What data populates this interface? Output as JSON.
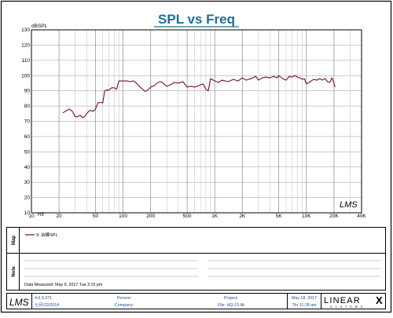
{
  "chart_data": {
    "type": "line",
    "title": "SPL vs Freq",
    "ylabel": "dBSPL",
    "x_unit": "Hz",
    "x_scale": "log",
    "xlim": [
      10,
      40000
    ],
    "ylim": [
      10,
      130
    ],
    "grid": true,
    "y_ticks": [
      10,
      20,
      30,
      40,
      50,
      60,
      70,
      80,
      90,
      100,
      110,
      120,
      130
    ],
    "x_ticks": [
      {
        "value": 10,
        "label": "10"
      },
      {
        "value": 20,
        "label": "20"
      },
      {
        "value": 50,
        "label": "50"
      },
      {
        "value": 100,
        "label": "100"
      },
      {
        "value": 200,
        "label": "200"
      },
      {
        "value": 500,
        "label": "500"
      },
      {
        "value": 1000,
        "label": "1K"
      },
      {
        "value": 2000,
        "label": "2K"
      },
      {
        "value": 5000,
        "label": "5K"
      },
      {
        "value": 10000,
        "label": "10K"
      },
      {
        "value": 20000,
        "label": "20K"
      },
      {
        "value": 40000,
        "label": "40K"
      }
    ],
    "series": [
      {
        "name": "9: 台模SPL",
        "color": "#7a1020",
        "x": [
          22,
          24,
          26,
          28,
          30,
          32,
          34,
          36,
          38,
          40,
          43,
          45,
          47,
          50,
          53,
          57,
          60,
          63,
          66,
          70,
          75,
          80,
          85,
          90,
          95,
          100,
          110,
          120,
          130,
          140,
          150,
          160,
          175,
          190,
          200,
          220,
          240,
          260,
          280,
          300,
          330,
          360,
          400,
          450,
          500,
          550,
          600,
          650,
          700,
          750,
          800,
          850,
          900,
          1000,
          1100,
          1200,
          1400,
          1600,
          1800,
          2000,
          2200,
          2500,
          2800,
          3000,
          3300,
          3600,
          4000,
          4400,
          4800,
          5000,
          5500,
          6000,
          6500,
          7000,
          7500,
          8000,
          8500,
          9000,
          9500,
          10000,
          11000,
          12000,
          13000,
          14000,
          15000,
          16000,
          17000,
          18000,
          19000,
          20000,
          20500
        ],
        "y": [
          75.5,
          77,
          78,
          76.5,
          73,
          73,
          74,
          72.5,
          73,
          75,
          77,
          77,
          76.5,
          78,
          82,
          82.5,
          82,
          90,
          90.5,
          90.5,
          92,
          92,
          91,
          96.5,
          96.5,
          96.5,
          96.5,
          96,
          96.5,
          95,
          93,
          91.5,
          89.5,
          91,
          92.5,
          93.5,
          95.5,
          96,
          94.5,
          93,
          94,
          95.5,
          95,
          96,
          92.5,
          93,
          92.5,
          93,
          94,
          94.5,
          91,
          90,
          98,
          96.5,
          95.5,
          97,
          96,
          97.5,
          96.5,
          98.5,
          97,
          98,
          99.5,
          97,
          98.5,
          99,
          98.5,
          99.5,
          98.5,
          100,
          98,
          97,
          99.5,
          99,
          100,
          99,
          98.5,
          97.5,
          98,
          94.5,
          96,
          97.5,
          97,
          98,
          97,
          98,
          96,
          95.5,
          98.5,
          95,
          92.5
        ]
      }
    ]
  },
  "brand": {
    "chart_logo": "LMS",
    "footer_logo": "LMS",
    "company_logo_text": "LINEAR",
    "company_logo_mark": "X",
    "company_logo_sub": "SYSTEMS"
  },
  "panels": {
    "map_label": "Map",
    "note_label": "Note",
    "legend_entry": "9: 台模SPL",
    "data_measured": "Data Measured: May  9, 2017   Tue  3:15 pm"
  },
  "footer": {
    "version": "4.6.0.371",
    "version_date": "七月/22/2014",
    "person_label": "Person:",
    "company_label": "Company:",
    "project_label": "Project:",
    "file_label": "File: HQ-15.lib",
    "date": "May 18, 2017",
    "time": "Thr 11:28 am"
  }
}
